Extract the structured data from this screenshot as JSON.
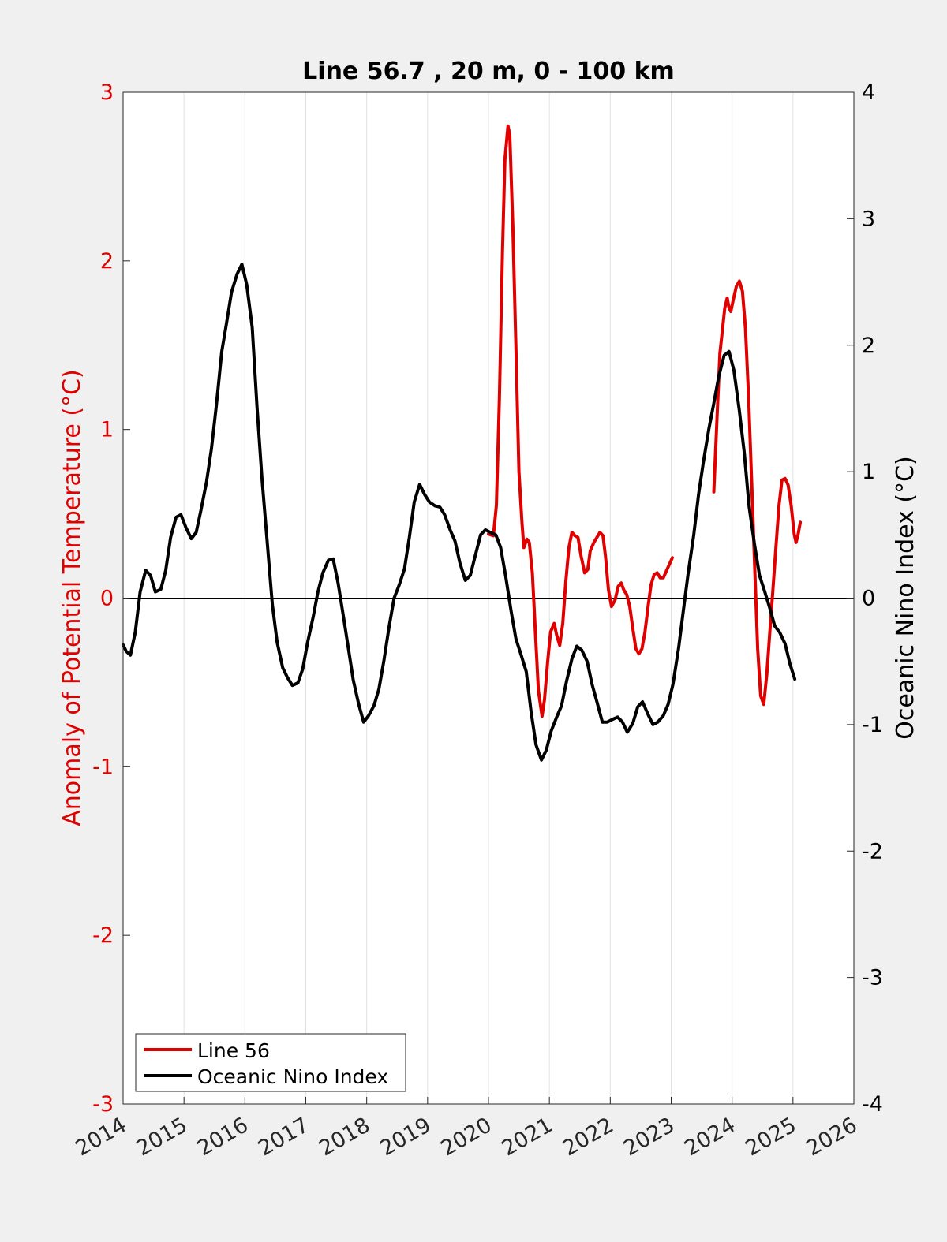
{
  "chart_data": {
    "type": "line",
    "title": "Line 56.7 , 20 m, 0 - 100 km",
    "ylabel_left": "Anomaly of Potential Temperature (°C)",
    "ylabel_right": "Oceanic Nino Index (°C)",
    "xlabel": "",
    "xlim": [
      2014,
      2026
    ],
    "ylim_left": [
      -3,
      3
    ],
    "ylim_right": [
      -4,
      4
    ],
    "x_ticks": [
      "2014",
      "2015",
      "2016",
      "2017",
      "2018",
      "2019",
      "2020",
      "2021",
      "2022",
      "2023",
      "2024",
      "2025",
      "2026"
    ],
    "y_ticks_left": [
      "3",
      "2",
      "1",
      "0",
      "-1",
      "-2",
      "-3"
    ],
    "y_ticks_right": [
      "4",
      "3",
      "2",
      "1",
      "0",
      "-1",
      "-2",
      "-3",
      "-4"
    ],
    "grid": "vertical",
    "zero_line": true,
    "legend_position": "bottom-left",
    "colors": {
      "line56": "#e00000",
      "oni": "#000000",
      "left_axis": "#e00000",
      "right_axis": "#000000",
      "background": "#f0f0f0",
      "plot_bg": "#ffffff"
    },
    "series": [
      {
        "name": "Line 56",
        "axis": "left",
        "segments": [
          [
            [
              2020.0,
              0.38
            ],
            [
              2020.08,
              0.37
            ],
            [
              2020.13,
              0.55
            ],
            [
              2020.18,
              1.2
            ],
            [
              2020.23,
              2.05
            ],
            [
              2020.27,
              2.6
            ],
            [
              2020.32,
              2.8
            ],
            [
              2020.35,
              2.75
            ],
            [
              2020.4,
              2.2
            ],
            [
              2020.45,
              1.5
            ],
            [
              2020.5,
              0.75
            ],
            [
              2020.55,
              0.45
            ],
            [
              2020.58,
              0.3
            ],
            [
              2020.63,
              0.35
            ],
            [
              2020.67,
              0.33
            ],
            [
              2020.72,
              0.15
            ],
            [
              2020.77,
              -0.2
            ],
            [
              2020.82,
              -0.55
            ],
            [
              2020.88,
              -0.7
            ],
            [
              2020.92,
              -0.6
            ],
            [
              2020.97,
              -0.38
            ],
            [
              2021.02,
              -0.2
            ],
            [
              2021.08,
              -0.15
            ],
            [
              2021.12,
              -0.22
            ],
            [
              2021.17,
              -0.28
            ],
            [
              2021.22,
              -0.15
            ],
            [
              2021.27,
              0.1
            ],
            [
              2021.32,
              0.3
            ],
            [
              2021.37,
              0.39
            ],
            [
              2021.42,
              0.37
            ],
            [
              2021.47,
              0.36
            ],
            [
              2021.52,
              0.25
            ],
            [
              2021.58,
              0.15
            ],
            [
              2021.63,
              0.17
            ],
            [
              2021.67,
              0.28
            ],
            [
              2021.73,
              0.33
            ],
            [
              2021.78,
              0.36
            ],
            [
              2021.83,
              0.39
            ],
            [
              2021.88,
              0.37
            ],
            [
              2021.92,
              0.25
            ],
            [
              2021.97,
              0.05
            ],
            [
              2022.02,
              -0.05
            ],
            [
              2022.08,
              -0.01
            ],
            [
              2022.13,
              0.07
            ],
            [
              2022.18,
              0.09
            ],
            [
              2022.22,
              0.05
            ],
            [
              2022.27,
              0.02
            ],
            [
              2022.32,
              -0.05
            ],
            [
              2022.37,
              -0.18
            ],
            [
              2022.42,
              -0.3
            ],
            [
              2022.47,
              -0.33
            ],
            [
              2022.52,
              -0.3
            ],
            [
              2022.57,
              -0.2
            ],
            [
              2022.62,
              -0.05
            ],
            [
              2022.67,
              0.08
            ],
            [
              2022.72,
              0.14
            ],
            [
              2022.77,
              0.15
            ],
            [
              2022.82,
              0.12
            ],
            [
              2022.87,
              0.12
            ],
            [
              2022.92,
              0.16
            ],
            [
              2022.97,
              0.2
            ],
            [
              2023.02,
              0.24
            ]
          ],
          [
            [
              2023.7,
              0.63
            ],
            [
              2023.75,
              1.05
            ],
            [
              2023.8,
              1.45
            ],
            [
              2023.85,
              1.62
            ],
            [
              2023.88,
              1.72
            ],
            [
              2023.92,
              1.78
            ],
            [
              2023.95,
              1.72
            ],
            [
              2023.98,
              1.7
            ],
            [
              2024.02,
              1.77
            ],
            [
              2024.07,
              1.85
            ],
            [
              2024.12,
              1.88
            ],
            [
              2024.17,
              1.82
            ],
            [
              2024.22,
              1.6
            ],
            [
              2024.27,
              1.2
            ],
            [
              2024.32,
              0.7
            ],
            [
              2024.37,
              0.2
            ],
            [
              2024.42,
              -0.3
            ],
            [
              2024.47,
              -0.58
            ],
            [
              2024.52,
              -0.63
            ],
            [
              2024.57,
              -0.45
            ],
            [
              2024.62,
              -0.2
            ],
            [
              2024.67,
              0.05
            ],
            [
              2024.72,
              0.3
            ],
            [
              2024.77,
              0.55
            ],
            [
              2024.82,
              0.7
            ],
            [
              2024.87,
              0.71
            ],
            [
              2024.92,
              0.67
            ],
            [
              2024.97,
              0.55
            ],
            [
              2025.02,
              0.38
            ],
            [
              2025.05,
              0.33
            ],
            [
              2025.08,
              0.37
            ],
            [
              2025.12,
              0.45
            ]
          ]
        ]
      },
      {
        "name": "Oceanic Nino Index",
        "axis": "right",
        "segments": [
          [
            [
              2014.0,
              -0.37
            ],
            [
              2014.05,
              -0.42
            ],
            [
              2014.12,
              -0.45
            ],
            [
              2014.2,
              -0.27
            ],
            [
              2014.28,
              0.05
            ],
            [
              2014.37,
              0.22
            ],
            [
              2014.45,
              0.18
            ],
            [
              2014.53,
              0.05
            ],
            [
              2014.62,
              0.07
            ],
            [
              2014.7,
              0.22
            ],
            [
              2014.78,
              0.48
            ],
            [
              2014.87,
              0.64
            ],
            [
              2014.95,
              0.66
            ],
            [
              2015.03,
              0.56
            ],
            [
              2015.12,
              0.47
            ],
            [
              2015.2,
              0.52
            ],
            [
              2015.28,
              0.7
            ],
            [
              2015.37,
              0.92
            ],
            [
              2015.45,
              1.18
            ],
            [
              2015.53,
              1.52
            ],
            [
              2015.62,
              1.95
            ],
            [
              2015.7,
              2.18
            ],
            [
              2015.78,
              2.42
            ],
            [
              2015.87,
              2.56
            ],
            [
              2015.95,
              2.64
            ],
            [
              2016.03,
              2.48
            ],
            [
              2016.12,
              2.14
            ],
            [
              2016.2,
              1.5
            ],
            [
              2016.28,
              0.95
            ],
            [
              2016.37,
              0.42
            ],
            [
              2016.45,
              -0.05
            ],
            [
              2016.53,
              -0.35
            ],
            [
              2016.62,
              -0.55
            ],
            [
              2016.7,
              -0.63
            ],
            [
              2016.78,
              -0.69
            ],
            [
              2016.87,
              -0.67
            ],
            [
              2016.95,
              -0.56
            ],
            [
              2017.03,
              -0.35
            ],
            [
              2017.12,
              -0.15
            ],
            [
              2017.2,
              0.05
            ],
            [
              2017.28,
              0.2
            ],
            [
              2017.37,
              0.3
            ],
            [
              2017.45,
              0.31
            ],
            [
              2017.53,
              0.12
            ],
            [
              2017.62,
              -0.15
            ],
            [
              2017.7,
              -0.4
            ],
            [
              2017.78,
              -0.65
            ],
            [
              2017.87,
              -0.84
            ],
            [
              2017.95,
              -0.98
            ],
            [
              2018.03,
              -0.93
            ],
            [
              2018.12,
              -0.85
            ],
            [
              2018.2,
              -0.72
            ],
            [
              2018.28,
              -0.5
            ],
            [
              2018.37,
              -0.22
            ],
            [
              2018.45,
              0.0
            ],
            [
              2018.53,
              0.1
            ],
            [
              2018.62,
              0.23
            ],
            [
              2018.7,
              0.48
            ],
            [
              2018.78,
              0.76
            ],
            [
              2018.87,
              0.9
            ],
            [
              2018.95,
              0.82
            ],
            [
              2019.03,
              0.76
            ],
            [
              2019.12,
              0.73
            ],
            [
              2019.2,
              0.72
            ],
            [
              2019.28,
              0.66
            ],
            [
              2019.37,
              0.54
            ],
            [
              2019.45,
              0.45
            ],
            [
              2019.53,
              0.28
            ],
            [
              2019.62,
              0.14
            ],
            [
              2019.7,
              0.18
            ],
            [
              2019.78,
              0.33
            ],
            [
              2019.87,
              0.5
            ],
            [
              2019.95,
              0.54
            ],
            [
              2020.03,
              0.52
            ],
            [
              2020.12,
              0.5
            ],
            [
              2020.2,
              0.4
            ],
            [
              2020.28,
              0.18
            ],
            [
              2020.37,
              -0.1
            ],
            [
              2020.45,
              -0.32
            ],
            [
              2020.53,
              -0.44
            ],
            [
              2020.62,
              -0.58
            ],
            [
              2020.7,
              -0.9
            ],
            [
              2020.78,
              -1.16
            ],
            [
              2020.87,
              -1.28
            ],
            [
              2020.95,
              -1.2
            ],
            [
              2021.03,
              -1.05
            ],
            [
              2021.12,
              -0.94
            ],
            [
              2021.2,
              -0.85
            ],
            [
              2021.28,
              -0.66
            ],
            [
              2021.37,
              -0.48
            ],
            [
              2021.45,
              -0.38
            ],
            [
              2021.53,
              -0.41
            ],
            [
              2021.62,
              -0.5
            ],
            [
              2021.7,
              -0.68
            ],
            [
              2021.78,
              -0.82
            ],
            [
              2021.87,
              -0.98
            ],
            [
              2021.95,
              -0.98
            ],
            [
              2022.03,
              -0.96
            ],
            [
              2022.12,
              -0.94
            ],
            [
              2022.2,
              -0.98
            ],
            [
              2022.28,
              -1.06
            ],
            [
              2022.37,
              -0.99
            ],
            [
              2022.45,
              -0.86
            ],
            [
              2022.53,
              -0.82
            ],
            [
              2022.62,
              -0.92
            ],
            [
              2022.7,
              -1.0
            ],
            [
              2022.78,
              -0.98
            ],
            [
              2022.87,
              -0.93
            ],
            [
              2022.95,
              -0.84
            ],
            [
              2023.03,
              -0.68
            ],
            [
              2023.12,
              -0.4
            ],
            [
              2023.2,
              -0.1
            ],
            [
              2023.28,
              0.2
            ],
            [
              2023.37,
              0.5
            ],
            [
              2023.45,
              0.82
            ],
            [
              2023.53,
              1.08
            ],
            [
              2023.62,
              1.34
            ],
            [
              2023.7,
              1.54
            ],
            [
              2023.78,
              1.75
            ],
            [
              2023.87,
              1.92
            ],
            [
              2023.95,
              1.95
            ],
            [
              2024.03,
              1.8
            ],
            [
              2024.12,
              1.48
            ],
            [
              2024.2,
              1.15
            ],
            [
              2024.28,
              0.72
            ],
            [
              2024.37,
              0.42
            ],
            [
              2024.45,
              0.18
            ],
            [
              2024.53,
              0.06
            ],
            [
              2024.62,
              -0.08
            ],
            [
              2024.7,
              -0.22
            ],
            [
              2024.78,
              -0.27
            ],
            [
              2024.87,
              -0.36
            ],
            [
              2024.95,
              -0.52
            ],
            [
              2025.03,
              -0.64
            ]
          ]
        ]
      }
    ]
  }
}
